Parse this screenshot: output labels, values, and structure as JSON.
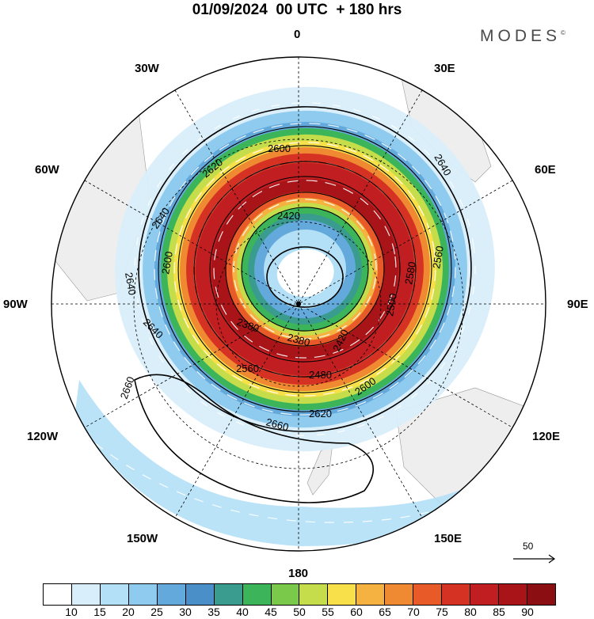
{
  "title": "01/09/2024  00 UTC  + 180 hrs",
  "brand": "MODES",
  "brand_mark": "©",
  "longitude_labels": {
    "n": "0",
    "e30": "30E",
    "e60": "60E",
    "e90": "90E",
    "e120": "120E",
    "e150": "150E",
    "s": "180",
    "w150": "150W",
    "w120": "120W",
    "w90": "90W",
    "w60": "60W",
    "w30": "30W"
  },
  "reference_vector": "50",
  "contours": [
    {
      "label": "2380"
    },
    {
      "label": "2420"
    },
    {
      "label": "2480"
    },
    {
      "label": "2500"
    },
    {
      "label": "2560"
    },
    {
      "label": "2580"
    },
    {
      "label": "2600"
    },
    {
      "label": "2620"
    },
    {
      "label": "2640"
    },
    {
      "label": "2660"
    }
  ],
  "colorbar": {
    "colors": [
      "#ffffff",
      "#d8eefa",
      "#b3e0f7",
      "#8fcbef",
      "#64a9dc",
      "#4a8fc8",
      "#3a9b8f",
      "#3cb55a",
      "#7ac94a",
      "#c5dd4a",
      "#f8e04a",
      "#f6b240",
      "#f08a32",
      "#e85a28",
      "#d63224",
      "#c01e20",
      "#a81418",
      "#8a0e12"
    ],
    "labels": [
      "10",
      "15",
      "20",
      "25",
      "30",
      "35",
      "40",
      "45",
      "50",
      "55",
      "60",
      "65",
      "70",
      "75",
      "80",
      "85",
      "90"
    ]
  }
}
